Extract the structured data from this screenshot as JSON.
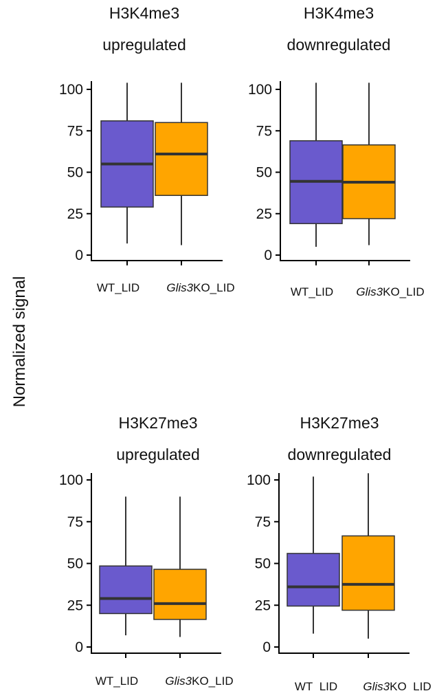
{
  "ylabel": "Normalized signal",
  "colors": {
    "WT_LID": "#6a5acd",
    "Glis3KO_LID": "#ffa500"
  },
  "chart_data": [
    {
      "type": "boxplot",
      "title_line1": "H3K4me3",
      "title_line2": "upregulated",
      "ylim": [
        0,
        100
      ],
      "yticks": [
        "0",
        "25",
        "50",
        "75",
        "100"
      ],
      "categories": [
        {
          "prefix": "WT_LID",
          "italic": "",
          "suffix": ""
        },
        {
          "prefix": "",
          "italic": "Glis3",
          "suffix": "KO_LID"
        }
      ],
      "boxes": [
        {
          "group": "WT_LID",
          "min": 7,
          "q1": 29,
          "median": 55,
          "q3": 81,
          "max": 104
        },
        {
          "group": "Glis3KO_LID",
          "min": 6,
          "q1": 36,
          "median": 61,
          "q3": 80,
          "max": 104
        }
      ]
    },
    {
      "type": "boxplot",
      "title_line1": "H3K4me3",
      "title_line2": "downregulated",
      "ylim": [
        0,
        100
      ],
      "yticks": [
        "0",
        "25",
        "50",
        "75",
        "100"
      ],
      "categories": [
        {
          "prefix": "WT_LID",
          "italic": "",
          "suffix": ""
        },
        {
          "prefix": "",
          "italic": "Glis3",
          "suffix": "KO_LID"
        }
      ],
      "boxes": [
        {
          "group": "WT_LID",
          "min": 5,
          "q1": 19,
          "median": 44.5,
          "q3": 69,
          "max": 104
        },
        {
          "group": "Glis3KO_LID",
          "min": 6,
          "q1": 22,
          "median": 44,
          "q3": 66.5,
          "max": 104
        }
      ]
    },
    {
      "type": "boxplot",
      "title_line1": "H3K27me3",
      "title_line2": "upregulated",
      "ylim": [
        0,
        100
      ],
      "yticks": [
        "0",
        "25",
        "50",
        "75",
        "100"
      ],
      "categories": [
        {
          "prefix": "WT_LID",
          "italic": "",
          "suffix": ""
        },
        {
          "prefix": "",
          "italic": "Glis3",
          "suffix": "KO_LID"
        }
      ],
      "boxes": [
        {
          "group": "WT_LID",
          "min": 7,
          "q1": 20,
          "median": 29,
          "q3": 48.5,
          "max": 90
        },
        {
          "group": "Glis3KO_LID",
          "min": 6,
          "q1": 16.5,
          "median": 26,
          "q3": 46.5,
          "max": 90
        }
      ]
    },
    {
      "type": "boxplot",
      "title_line1": "H3K27me3",
      "title_line2": "downregulated",
      "ylim": [
        0,
        100
      ],
      "yticks": [
        "0",
        "25",
        "50",
        "75",
        "100"
      ],
      "categories": [
        {
          "prefix": "WT_LID",
          "italic": "",
          "suffix": ""
        },
        {
          "prefix": "",
          "italic": "Glis3",
          "suffix": "KO_LID"
        }
      ],
      "boxes": [
        {
          "group": "WT_LID",
          "min": 8,
          "q1": 24.5,
          "median": 36,
          "q3": 56,
          "max": 102
        },
        {
          "group": "Glis3KO_LID",
          "min": 5,
          "q1": 22,
          "median": 37.5,
          "q3": 66.5,
          "max": 104
        }
      ]
    }
  ]
}
